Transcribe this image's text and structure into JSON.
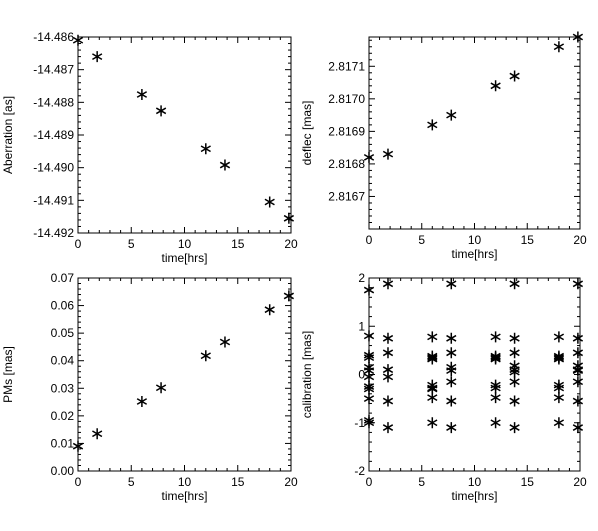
{
  "figure": {
    "background": "#ffffff",
    "axis_color": "#000000",
    "marker_color": "#000000"
  },
  "chart_data": [
    {
      "type": "scatter",
      "marker": "*",
      "xlabel": "time[hrs]",
      "ylabel": "Aberration [as]",
      "xlim": [
        0,
        20
      ],
      "ylim": [
        -14.492,
        -14.486
      ],
      "xticks": [
        0,
        5,
        10,
        15,
        20
      ],
      "xticklabels": [
        "0",
        "5",
        "10",
        "15",
        "20"
      ],
      "yticks": [
        -14.492,
        -14.491,
        -14.49,
        -14.489,
        -14.488,
        -14.487,
        -14.486
      ],
      "yticklabels": [
        "-14.492",
        "-14.491",
        "-14.490",
        "-14.489",
        "-14.488",
        "-14.487",
        "-14.486"
      ],
      "series": [
        {
          "x": [
            0,
            1.8,
            6,
            7.8,
            12,
            13.8,
            18,
            19.8
          ],
          "y": [
            -14.4861,
            -14.4866,
            -14.48776,
            -14.48826,
            -14.48942,
            -14.48992,
            -14.49105,
            -14.49155
          ]
        }
      ]
    },
    {
      "type": "scatter",
      "marker": "*",
      "xlabel": "time[hrs]",
      "ylabel": "deflec [mas]",
      "xlim": [
        0,
        20
      ],
      "ylim": [
        2.8166,
        2.81719
      ],
      "xticks": [
        0,
        5,
        10,
        15,
        20
      ],
      "xticklabels": [
        "0",
        "5",
        "10",
        "15",
        "20"
      ],
      "yticks": [
        2.8167,
        2.8168,
        2.8169,
        2.817,
        2.8171
      ],
      "yticklabels": [
        "2.8167",
        "2.8168",
        "2.8169",
        "2.8170",
        "2.8171"
      ],
      "series": [
        {
          "x": [
            0,
            1.8,
            6,
            7.8,
            12,
            13.8,
            18,
            19.8
          ],
          "y": [
            2.81682,
            2.81683,
            2.81692,
            2.81695,
            2.81704,
            2.81707,
            2.81716,
            2.81719
          ]
        }
      ]
    },
    {
      "type": "scatter",
      "marker": "*",
      "xlabel": "time[hrs]",
      "ylabel": "PMs [mas]",
      "xlim": [
        0,
        20
      ],
      "ylim": [
        0,
        0.07
      ],
      "xticks": [
        0,
        5,
        10,
        15,
        20
      ],
      "xticklabels": [
        "0",
        "5",
        "10",
        "15",
        "20"
      ],
      "yticks": [
        0,
        0.01,
        0.02,
        0.03,
        0.04,
        0.05,
        0.06,
        0.07
      ],
      "yticklabels": [
        "0.00",
        "0.01",
        "0.02",
        "0.03",
        "0.04",
        "0.05",
        "0.06",
        "0.07"
      ],
      "series": [
        {
          "x": [
            0,
            1.8,
            6,
            7.8,
            12,
            13.8,
            18,
            19.8
          ],
          "y": [
            0.009,
            0.0135,
            0.0252,
            0.0302,
            0.0418,
            0.0468,
            0.0585,
            0.0635
          ]
        }
      ]
    },
    {
      "type": "scatter",
      "marker": "*",
      "xlabel": "time[hrs]",
      "ylabel": "calibration [mas]",
      "xlim": [
        0,
        20
      ],
      "ylim": [
        -2,
        2
      ],
      "xticks": [
        0,
        5,
        10,
        15,
        20
      ],
      "xticklabels": [
        "0",
        "5",
        "10",
        "15",
        "20"
      ],
      "yticks": [
        -2,
        -1,
        0,
        1,
        2
      ],
      "yticklabels": [
        "-2",
        "-1",
        "0",
        "1",
        "2"
      ],
      "series": [
        {
          "x": [
            0,
            0,
            0,
            0,
            0,
            0,
            0,
            0,
            0,
            0,
            0,
            0,
            1.8,
            1.8,
            1.8,
            1.8,
            1.8,
            1.8,
            1.8,
            6,
            6,
            6,
            6,
            6,
            6,
            6,
            6,
            6,
            7.8,
            7.8,
            7.8,
            7.8,
            7.8,
            7.8,
            7.8,
            7.8,
            12,
            12,
            12,
            12,
            12,
            12,
            12,
            12,
            13.8,
            13.8,
            13.8,
            13.8,
            13.8,
            13.8,
            13.8,
            13.8,
            13.8,
            18,
            18,
            18,
            18,
            18,
            18,
            18,
            18,
            19.8,
            19.8,
            19.8,
            19.8,
            19.8,
            19.8,
            19.8,
            19.8,
            19.8
          ],
          "y": [
            0.8,
            0.4,
            0.35,
            0.15,
            0.08,
            -0.05,
            -0.25,
            -0.3,
            -0.5,
            -0.95,
            -1.0,
            1.75,
            1.88,
            0.75,
            0.45,
            0.1,
            -0.05,
            -0.55,
            -1.1,
            0.78,
            0.38,
            0.32,
            -0.22,
            -0.28,
            -0.48,
            -1.0,
            0.35,
            -0.3,
            1.88,
            0.75,
            0.45,
            0.15,
            0.08,
            -0.15,
            -0.55,
            -1.1,
            0.78,
            0.38,
            0.32,
            -0.22,
            -0.28,
            -0.48,
            -1.0,
            0.35,
            1.88,
            0.75,
            0.45,
            0.18,
            0.1,
            0.05,
            -0.15,
            -0.55,
            -1.1,
            0.78,
            0.38,
            0.32,
            -0.22,
            -0.28,
            -0.48,
            -1.0,
            0.35,
            1.88,
            0.75,
            0.45,
            0.18,
            0.1,
            0.08,
            -0.15,
            -0.55,
            -1.1
          ]
        }
      ]
    }
  ]
}
